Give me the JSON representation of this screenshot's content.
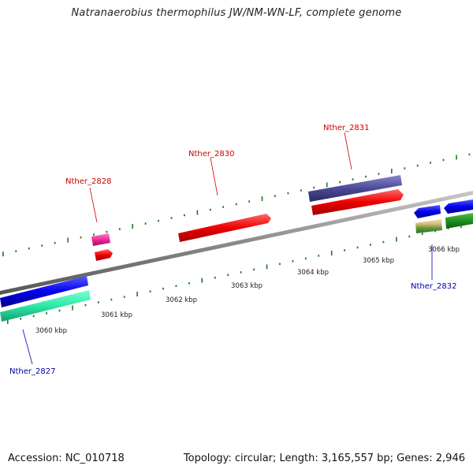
{
  "title": "Natranaerobius thermophilus JW/NM-WN-LF, complete genome",
  "footer": {
    "accession": "Accession: NC_010718",
    "summary": "Topology: circular; Length: 3,165,557 bp; Genes: 2,946"
  },
  "colors": {
    "label_top": "#cc0000",
    "label_bottom": "#0000aa",
    "backbone": "#8a8a8a",
    "tick": "#1a7a1a"
  },
  "ticks": [
    {
      "label": "3060 kbp"
    },
    {
      "label": "3061 kbp"
    },
    {
      "label": "3062 kbp"
    },
    {
      "label": "3063 kbp"
    },
    {
      "label": "3064 kbp"
    },
    {
      "label": "3065 kbp"
    },
    {
      "label": "3066 kbp"
    }
  ],
  "gene_labels": [
    {
      "name": "Nther_2827"
    },
    {
      "name": "Nther_2828"
    },
    {
      "name": "Nther_2830"
    },
    {
      "name": "Nther_2831"
    },
    {
      "name": "Nther_2832"
    }
  ]
}
